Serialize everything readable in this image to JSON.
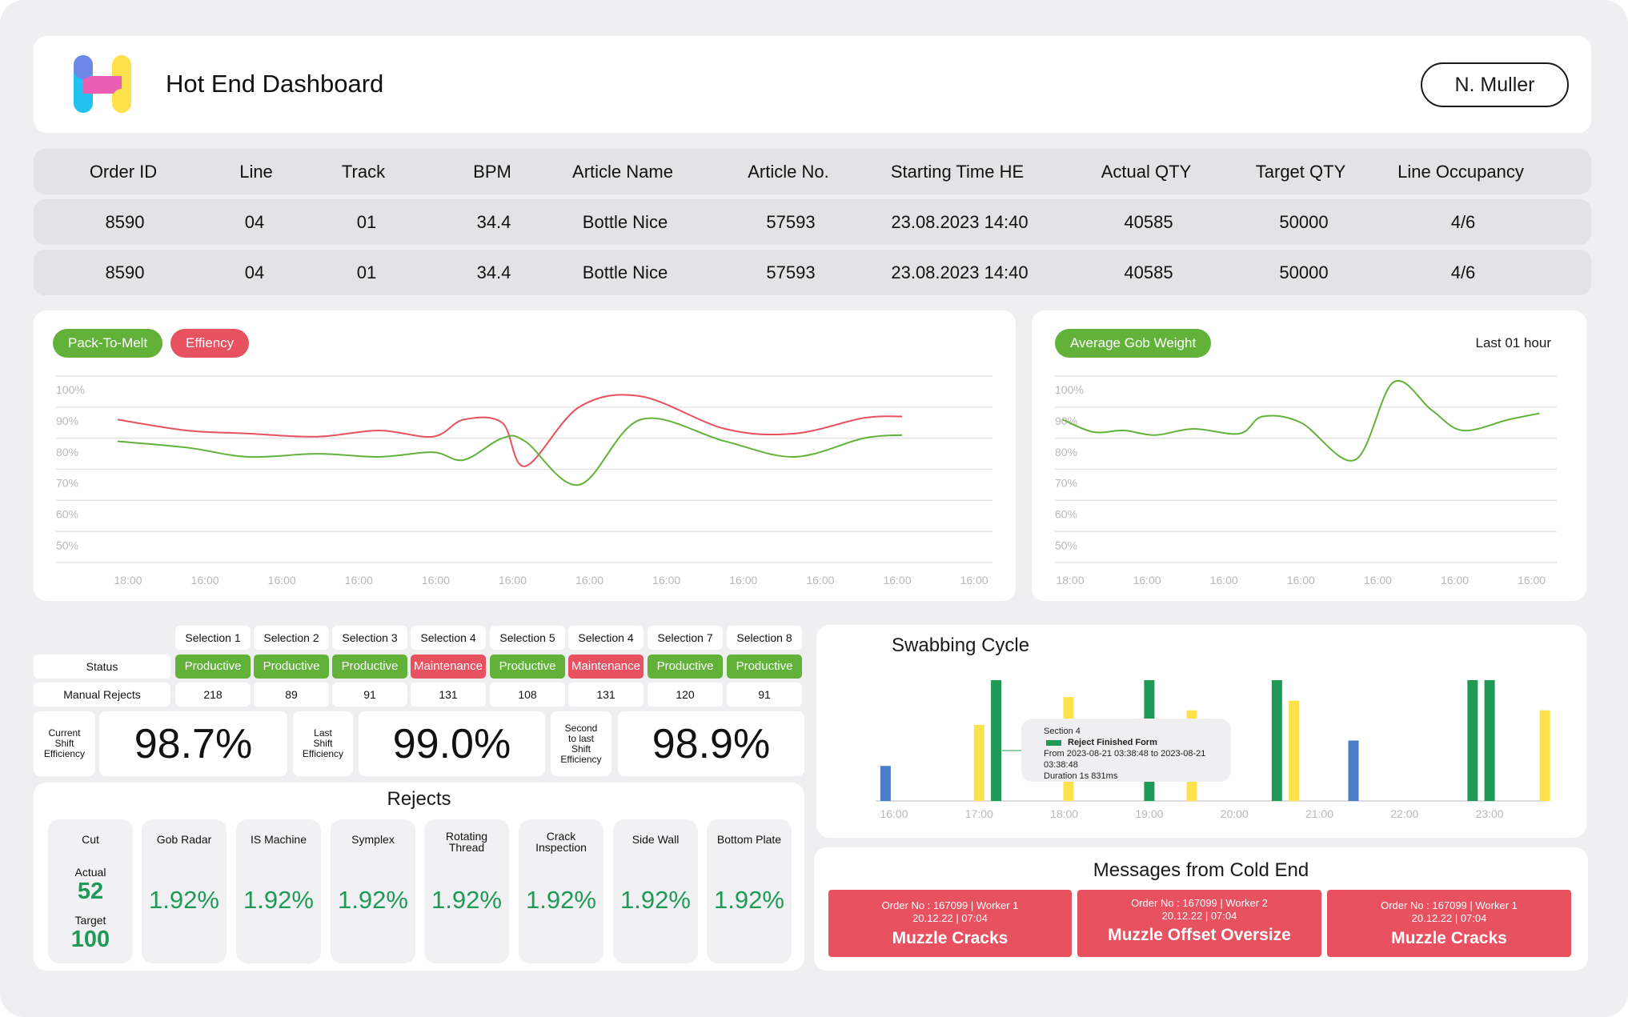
{
  "header": {
    "title": "Hot End Dashboard",
    "user": "N. Muller"
  },
  "orders": {
    "columns": [
      "Order ID",
      "Line",
      "Track",
      "BPM",
      "Article Name",
      "Article No.",
      "Starting Time HE",
      "Actual QTY",
      "Target QTY",
      "Line Occupancy"
    ],
    "rows": [
      [
        "8590",
        "04",
        "01",
        "34.4",
        "Bottle Nice",
        "57593",
        "23.08.2023 14:40",
        "40585",
        "50000",
        "4/6"
      ],
      [
        "8590",
        "04",
        "01",
        "34.4",
        "Bottle Nice",
        "57593",
        "23.08.2023 14:40",
        "40585",
        "50000",
        "4/6"
      ]
    ]
  },
  "efficiency_chart": {
    "legend": {
      "pack_to_melt": "Pack-To-Melt",
      "efficiency": "Effiency"
    }
  },
  "gob_chart": {
    "legend": "Average Gob Weight",
    "range_label": "Last 01 hour"
  },
  "chart_data": [
    {
      "type": "line",
      "title": "",
      "y_ticks": [
        "100%",
        "90%",
        "80%",
        "70%",
        "60%",
        "50%"
      ],
      "x_ticks": [
        "18:00",
        "16:00",
        "16:00",
        "16:00",
        "16:00",
        "16:00",
        "16:00",
        "16:00",
        "16:00",
        "16:00",
        "16:00",
        "16:00"
      ],
      "ylim": [
        45,
        105
      ],
      "series": [
        {
          "name": "Effiency",
          "color": "#e8515f",
          "x": [
            0.8,
            1.7,
            2.5,
            3.4,
            4.2,
            4.9,
            5.3,
            5.8,
            6.1,
            6.8,
            7.6,
            8.7,
            9.6,
            10.5,
            11.0
          ],
          "values": [
            91,
            87.5,
            86.5,
            85.5,
            87.5,
            85.5,
            91,
            90,
            76,
            95,
            98.5,
            88,
            86.5,
            91.5,
            92
          ]
        },
        {
          "name": "Pack-To-Melt",
          "color": "#62b23a",
          "x": [
            0.8,
            1.7,
            2.5,
            3.4,
            4.2,
            4.9,
            5.3,
            5.8,
            6.1,
            6.8,
            7.6,
            8.7,
            9.6,
            10.5,
            11.0
          ],
          "values": [
            84,
            82,
            79,
            80,
            79,
            80.5,
            78,
            85,
            84,
            70,
            91,
            84,
            79,
            85,
            86
          ]
        }
      ]
    },
    {
      "type": "line",
      "title": "",
      "y_ticks": [
        "100%",
        "90%",
        "80%",
        "70%",
        "60%",
        "50%"
      ],
      "x_ticks": [
        "18:00",
        "16:00",
        "16:00",
        "16:00",
        "16:00",
        "16:00",
        "16:00"
      ],
      "ylim": [
        45,
        105
      ],
      "series": [
        {
          "name": "Average Gob Weight",
          "color": "#62b23a",
          "x": [
            0.1,
            0.5,
            0.9,
            1.3,
            1.8,
            2.4,
            2.7,
            3.2,
            3.9,
            4.4,
            4.9,
            5.3,
            5.9,
            6.3
          ],
          "values": [
            91,
            87,
            87.5,
            86,
            88,
            86.5,
            92,
            90,
            78,
            103,
            94,
            87.5,
            91,
            93
          ]
        }
      ]
    },
    {
      "type": "bar",
      "title": "Swabbing Cycle",
      "x_ticks": [
        "16:00",
        "17:00",
        "18:00",
        "19:00",
        "20:00",
        "21:00",
        "22:00",
        "23:00"
      ],
      "bars": [
        {
          "t": 15.9,
          "value": 29,
          "color": "#4a7ec8"
        },
        {
          "t": 17.0,
          "value": 63,
          "color": "#fde24e"
        },
        {
          "t": 17.2,
          "value": 100,
          "color": "#1f9a56"
        },
        {
          "t": 18.05,
          "value": 86,
          "color": "#fde24e"
        },
        {
          "t": 19.0,
          "value": 100,
          "color": "#1f9a56"
        },
        {
          "t": 19.5,
          "value": 75,
          "color": "#fde24e"
        },
        {
          "t": 20.5,
          "value": 100,
          "color": "#1f9a56"
        },
        {
          "t": 20.7,
          "value": 83,
          "color": "#fde24e"
        },
        {
          "t": 21.4,
          "value": 50,
          "color": "#4a7ec8"
        },
        {
          "t": 22.8,
          "value": 100,
          "color": "#1f9a56"
        },
        {
          "t": 23.0,
          "value": 100,
          "color": "#1f9a56"
        },
        {
          "t": 23.65,
          "value": 75,
          "color": "#fde24e"
        }
      ]
    }
  ],
  "swab_tooltip": {
    "section": "Section 4",
    "label": "Reject Finished Form",
    "range": "From 2023-08-21 03:38:48 to 2023-08-21 03:38:48",
    "duration": "Duration 1s 831ms",
    "color": "#1f9a56"
  },
  "selections": {
    "headers": [
      "Selection 1",
      "Selection 2",
      "Selection 3",
      "Selection 4",
      "Selection 5",
      "Selection 4",
      "Selection 7",
      "Selection 8"
    ],
    "status_label": "Status",
    "status": [
      "Productive",
      "Productive",
      "Productive",
      "Maintenance",
      "Productive",
      "Maintenance",
      "Productive",
      "Productive"
    ],
    "rejects_label": "Manual Rejects",
    "manual_rejects": [
      "218",
      "89",
      "91",
      "131",
      "108",
      "131",
      "120",
      "91"
    ]
  },
  "shift_efficiency": [
    {
      "label": [
        "Current",
        "Shift",
        "Efficiency"
      ],
      "value": "98.7%"
    },
    {
      "label": [
        "Last",
        "Shift",
        "Efficiency"
      ],
      "value": "99.0%"
    },
    {
      "label": [
        "Second",
        "to last",
        "Shift",
        "Efficiency"
      ],
      "value": "98.9%"
    }
  ],
  "rejects": {
    "title": "Rejects",
    "cut": {
      "name": "Cut",
      "actual_label": "Actual",
      "actual": "52",
      "target_label": "Target",
      "target": "100"
    },
    "items": [
      {
        "name": [
          "Gob Radar"
        ],
        "value": "1.92%"
      },
      {
        "name": [
          "IS Machine"
        ],
        "value": "1.92%"
      },
      {
        "name": [
          "Symplex"
        ],
        "value": "1.92%"
      },
      {
        "name": [
          "Rotating",
          "Thread"
        ],
        "value": "1.92%"
      },
      {
        "name": [
          "Crack",
          "Inspection"
        ],
        "value": "1.92%"
      },
      {
        "name": [
          "Side Wall"
        ],
        "value": "1.92%"
      },
      {
        "name": [
          "Bottom Plate"
        ],
        "value": "1.92%"
      }
    ]
  },
  "messages": {
    "title": "Messages from Cold End",
    "items": [
      {
        "line1": "Order No : 167099 | Worker 1",
        "line2": "20.12.22 | 07:04",
        "text": "Muzzle Cracks"
      },
      {
        "line1": "Order No : 167099 | Worker 2",
        "line2": "20.12.22 | 07:04",
        "text": "Muzzle Offset Oversize"
      },
      {
        "line1": "Order No : 167099 | Worker 1",
        "line2": "20.12.22 | 07:04",
        "text": "Muzzle Cracks"
      }
    ]
  }
}
